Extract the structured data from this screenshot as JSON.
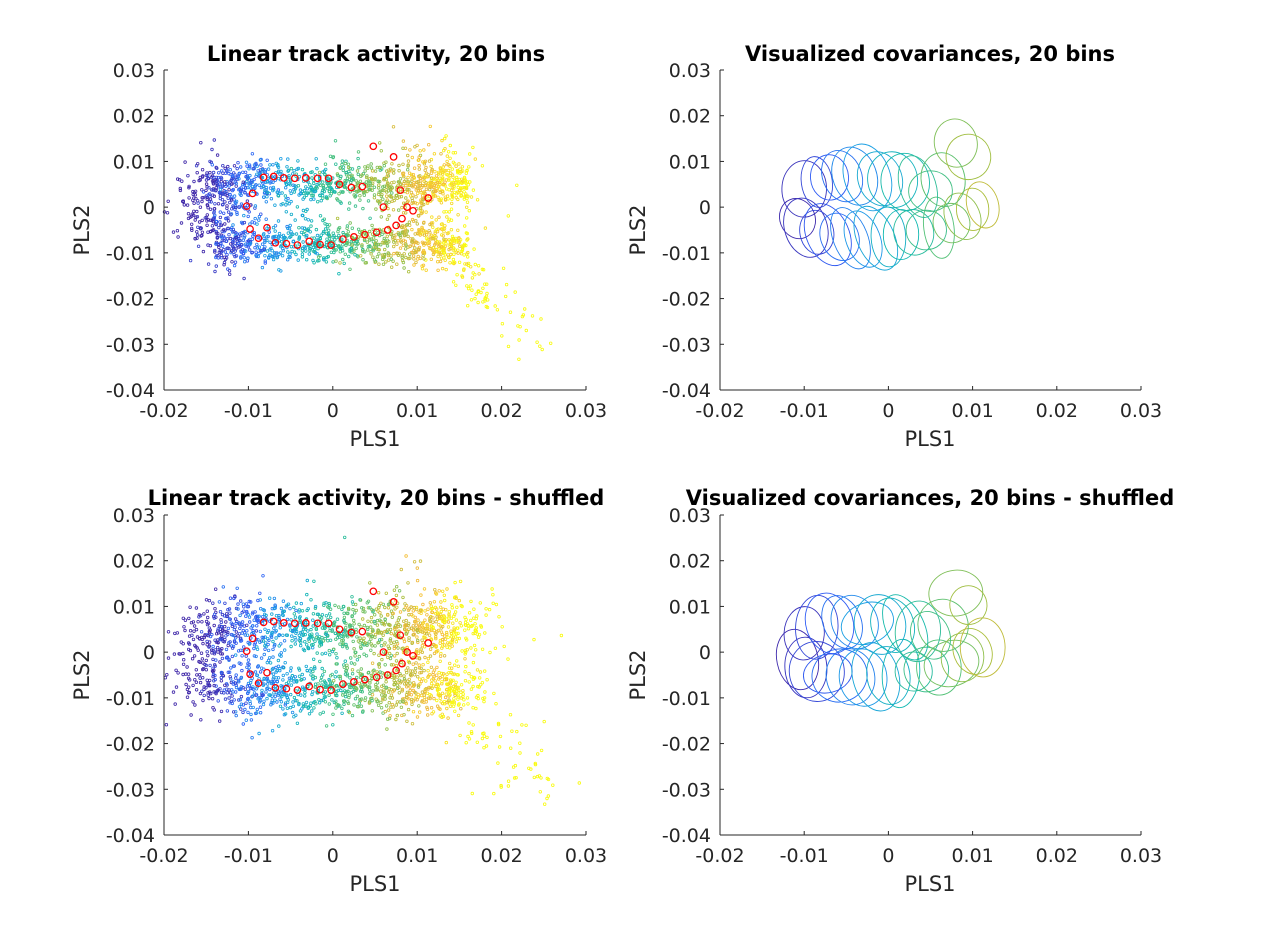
{
  "chart_data": [
    {
      "type": "scatter",
      "title": "Linear track activity, 20 bins",
      "xlabel": "PLS1",
      "ylabel": "PLS2",
      "xlim": [
        -0.02,
        0.03
      ],
      "ylim": [
        -0.04,
        0.03
      ],
      "xticks": [
        "-0.02",
        "-0.01",
        "0",
        "0.01",
        "0.02",
        "0.03"
      ],
      "yticks": [
        "-0.04",
        "-0.03",
        "-0.02",
        "-0.01",
        "0",
        "0.01",
        "0.02",
        "0.03"
      ],
      "colormap": [
        "#3e26a8",
        "#2e5ef7",
        "#1a9ee5",
        "#11b8b0",
        "#4cc17a",
        "#a9be3a",
        "#f4b93a",
        "#f9fb0e"
      ],
      "marker_color": "#ff0000",
      "bin_centers": {
        "x": [
          -0.0102,
          -0.0098,
          -0.0088,
          -0.0078,
          -0.0068,
          -0.0055,
          -0.0042,
          -0.0028,
          -0.0015,
          -0.0002,
          0.0012,
          0.0025,
          0.0038,
          0.0052,
          0.0065,
          0.0075,
          0.0082,
          0.0088,
          0.0095,
          0.0113,
          -0.0095,
          -0.0082,
          -0.007,
          -0.0058,
          -0.0045,
          -0.0032,
          -0.0018,
          -0.0005,
          0.0008,
          0.0022,
          0.0035,
          0.0048,
          0.006,
          0.0072,
          0.008
        ],
        "y": [
          0.0002,
          -0.0048,
          -0.0068,
          -0.0045,
          -0.0078,
          -0.008,
          -0.0083,
          -0.0075,
          -0.0082,
          -0.0083,
          -0.007,
          -0.0065,
          -0.006,
          -0.0055,
          -0.005,
          -0.004,
          -0.0025,
          0.0,
          -0.0008,
          0.002,
          0.003,
          0.0065,
          0.0067,
          0.0064,
          0.0063,
          0.0064,
          0.0063,
          0.0063,
          0.005,
          0.0043,
          0.0045,
          0.0133,
          0.0,
          0.011,
          0.0037
        ]
      }
    },
    {
      "type": "scatter",
      "title": "Visualized covariances, 20 bins",
      "xlabel": "PLS1",
      "ylabel": "PLS2",
      "xlim": [
        -0.02,
        0.03
      ],
      "ylim": [
        -0.04,
        0.03
      ],
      "xticks": [
        "-0.02",
        "-0.01",
        "0",
        "0.01",
        "0.02",
        "0.03"
      ],
      "yticks": [
        "-0.04",
        "-0.03",
        "-0.02",
        "-0.01",
        "0",
        "0.01",
        "0.02",
        "0.03"
      ],
      "covariance_ellipses": {
        "x": [
          -0.0108,
          -0.0098,
          -0.0085,
          -0.0072,
          -0.0058,
          -0.0045,
          -0.003,
          -0.0015,
          0.0,
          0.0015,
          0.003,
          0.0045,
          0.006,
          0.0075,
          0.0088,
          0.01,
          0.0112,
          -0.01,
          -0.0085,
          -0.007,
          -0.0055,
          -0.004,
          -0.0025,
          -0.001,
          0.0005,
          0.002,
          0.0035,
          0.005,
          0.0065,
          0.008,
          0.0095
        ],
        "y": [
          -0.0025,
          -0.0045,
          -0.0055,
          -0.006,
          -0.0065,
          -0.0068,
          -0.007,
          -0.0068,
          -0.0065,
          -0.006,
          -0.0055,
          -0.005,
          -0.0045,
          -0.0035,
          -0.002,
          -0.0005,
          0.0005,
          0.004,
          0.0055,
          0.0065,
          0.0068,
          0.0068,
          0.0065,
          0.0062,
          0.006,
          0.0055,
          0.0045,
          0.0035,
          0.006,
          0.014,
          0.011
        ]
      }
    },
    {
      "type": "scatter",
      "title": "Linear track activity, 20 bins - shuffled",
      "xlabel": "PLS1",
      "ylabel": "PLS2",
      "xlim": [
        -0.02,
        0.03
      ],
      "ylim": [
        -0.04,
        0.03
      ],
      "xticks": [
        "-0.02",
        "-0.01",
        "0",
        "0.01",
        "0.02",
        "0.03"
      ],
      "yticks": [
        "-0.04",
        "-0.03",
        "-0.02",
        "-0.01",
        "0",
        "0.01",
        "0.02",
        "0.03"
      ]
    },
    {
      "type": "scatter",
      "title": "Visualized covariances, 20 bins - shuffled",
      "xlabel": "PLS1",
      "ylabel": "PLS2",
      "xlim": [
        -0.02,
        0.03
      ],
      "ylim": [
        -0.04,
        0.03
      ],
      "xticks": [
        "-0.02",
        "-0.01",
        "0",
        "0.01",
        "0.02",
        "0.03"
      ],
      "yticks": [
        "-0.04",
        "-0.03",
        "-0.02",
        "-0.01",
        "0",
        "0.01",
        "0.02",
        "0.03"
      ]
    }
  ]
}
